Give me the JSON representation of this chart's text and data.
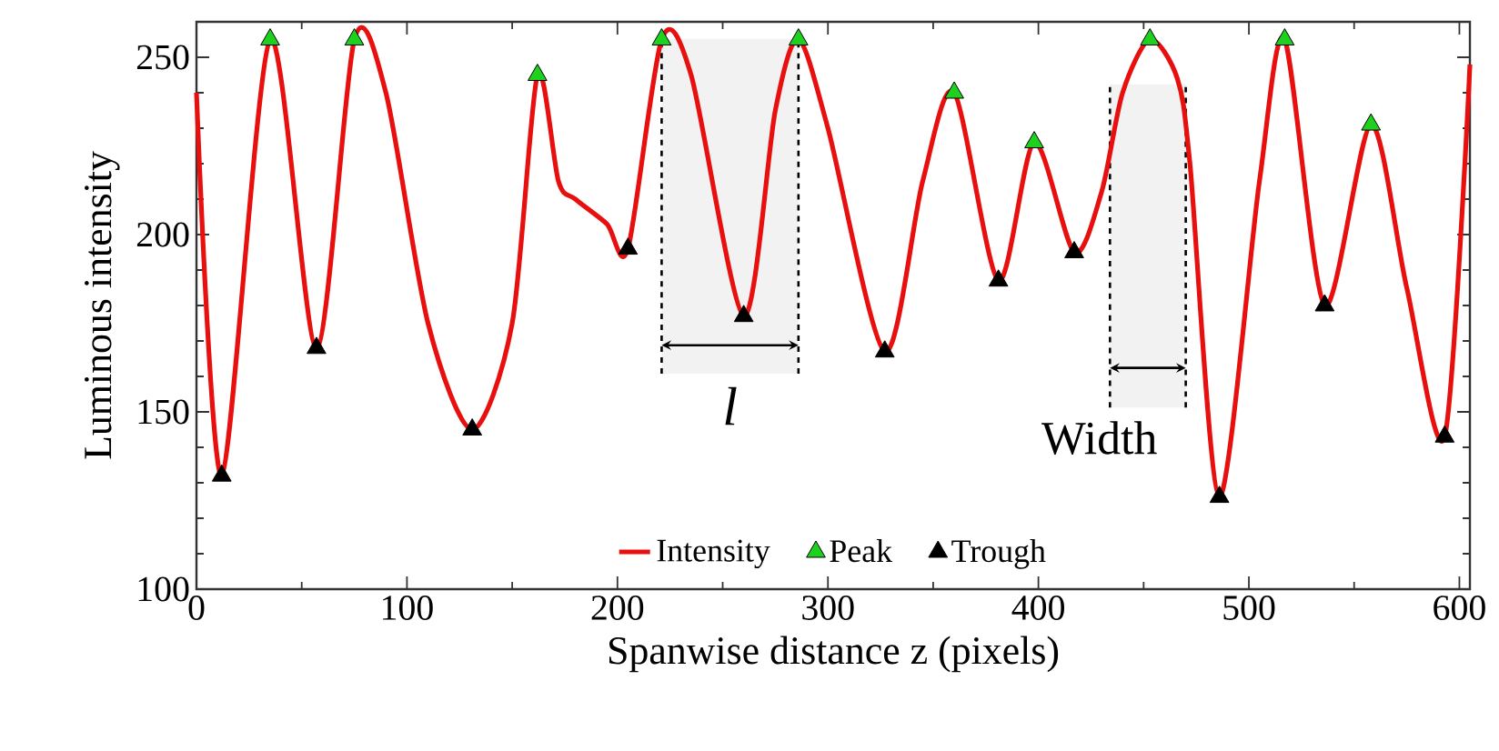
{
  "chart_data": {
    "type": "line",
    "xlabel": "Spanwise distance z (pixels)",
    "ylabel": "Luminous intensity",
    "xlim": [
      0,
      605
    ],
    "ylim": [
      100,
      260
    ],
    "xticks": [
      0,
      100,
      200,
      300,
      400,
      500,
      600
    ],
    "yticks": [
      100,
      150,
      200,
      250
    ],
    "grid": false,
    "legend": "bottom",
    "series": [
      {
        "name": "Intensity",
        "color": "#e8100f",
        "marker": "none",
        "line_style": "solid",
        "x": [
          0,
          12,
          35,
          57,
          75,
          90,
          110,
          131,
          150,
          162,
          172,
          180,
          195,
          205,
          221,
          235,
          260,
          275,
          286,
          300,
          327,
          345,
          360,
          381,
          398,
          417,
          430,
          440,
          453,
          466,
          472,
          486,
          505,
          517,
          536,
          558,
          575,
          593,
          605
        ],
        "values": [
          240,
          132,
          255,
          168,
          255,
          240,
          175,
          145,
          175,
          245,
          215,
          210,
          203,
          196,
          255,
          245,
          177,
          235,
          255,
          230,
          167,
          215,
          240,
          187,
          226,
          195,
          212,
          240,
          255,
          244,
          220,
          126,
          215,
          255,
          180,
          231,
          185,
          143,
          248
        ]
      },
      {
        "name": "Peak",
        "type": "scatter",
        "color": "#1fd11f",
        "marker": "triangle",
        "x": [
          35,
          75,
          162,
          221,
          286,
          360,
          398,
          453,
          517,
          558
        ],
        "values": [
          255,
          255,
          245,
          255,
          255,
          240,
          226,
          255,
          255,
          231
        ]
      },
      {
        "name": "Trough",
        "type": "scatter",
        "color": "#000000",
        "marker": "triangle",
        "x": [
          12,
          57,
          131,
          205,
          260,
          327,
          381,
          417,
          486,
          536,
          593
        ],
        "values": [
          132,
          168,
          145,
          196,
          177,
          167,
          187,
          195,
          126,
          180,
          143
        ]
      }
    ],
    "bands": [
      {
        "axis": "x",
        "from": 221,
        "to": 286,
        "label": "l"
      },
      {
        "axis": "x",
        "from": 434,
        "to": 470,
        "label": "Width"
      }
    ]
  }
}
